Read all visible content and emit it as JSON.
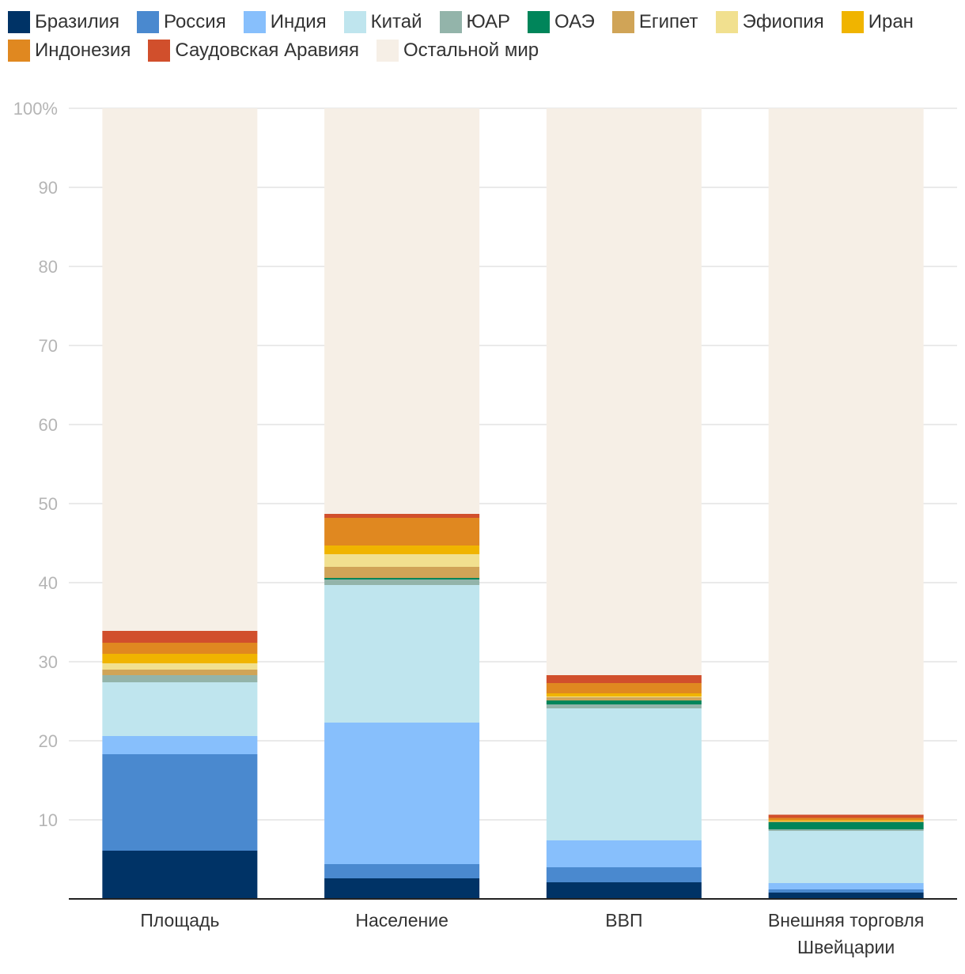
{
  "chart_data": {
    "type": "bar",
    "stacked": true,
    "title": "",
    "xlabel": "",
    "ylabel": "",
    "ylim": [
      0,
      100
    ],
    "y_ticks": [
      "10",
      "20",
      "30",
      "40",
      "50",
      "60",
      "70",
      "80",
      "90",
      "100%"
    ],
    "y_tick_values": [
      10,
      20,
      30,
      40,
      50,
      60,
      70,
      80,
      90,
      100
    ],
    "grid": true,
    "legend_position": "top",
    "categories": [
      [
        "Площадь"
      ],
      [
        "Население"
      ],
      [
        "ВВП"
      ],
      [
        "Внешняя торговля",
        "Швейцарии"
      ]
    ],
    "series": [
      {
        "name": "Бразилия",
        "color": "#003366",
        "values": [
          6.1,
          2.6,
          2.1,
          0.8
        ]
      },
      {
        "name": "Россия",
        "color": "#4a89cf",
        "values": [
          12.2,
          1.8,
          1.9,
          0.4
        ]
      },
      {
        "name": "Индия",
        "color": "#87bffc",
        "values": [
          2.3,
          17.9,
          3.4,
          0.8
        ]
      },
      {
        "name": "Китай",
        "color": "#bfe5ee",
        "values": [
          6.8,
          17.4,
          16.7,
          6.6
        ]
      },
      {
        "name": "ЮАР",
        "color": "#93b4aa",
        "values": [
          0.9,
          0.7,
          0.5,
          0.2
        ]
      },
      {
        "name": "ОАЭ",
        "color": "#00855a",
        "values": [
          0.0,
          0.2,
          0.5,
          0.9
        ]
      },
      {
        "name": "Египет",
        "color": "#d0a457",
        "values": [
          0.7,
          1.4,
          0.4,
          0.1
        ]
      },
      {
        "name": "Эфиопия",
        "color": "#f1e08f",
        "values": [
          0.8,
          1.6,
          0.1,
          0.05
        ]
      },
      {
        "name": "Иран",
        "color": "#f0b400",
        "values": [
          1.2,
          1.1,
          0.4,
          0.1
        ]
      },
      {
        "name": "Индонезия",
        "color": "#e08820",
        "values": [
          1.4,
          3.5,
          1.3,
          0.3
        ]
      },
      {
        "name": "Саудовская Аравияя",
        "color": "#d14f2c",
        "values": [
          1.5,
          0.5,
          1.0,
          0.4
        ]
      },
      {
        "name": "Остальной мир",
        "color": "#f6efe6",
        "values": [
          66.1,
          51.3,
          71.7,
          89.35
        ]
      }
    ]
  }
}
